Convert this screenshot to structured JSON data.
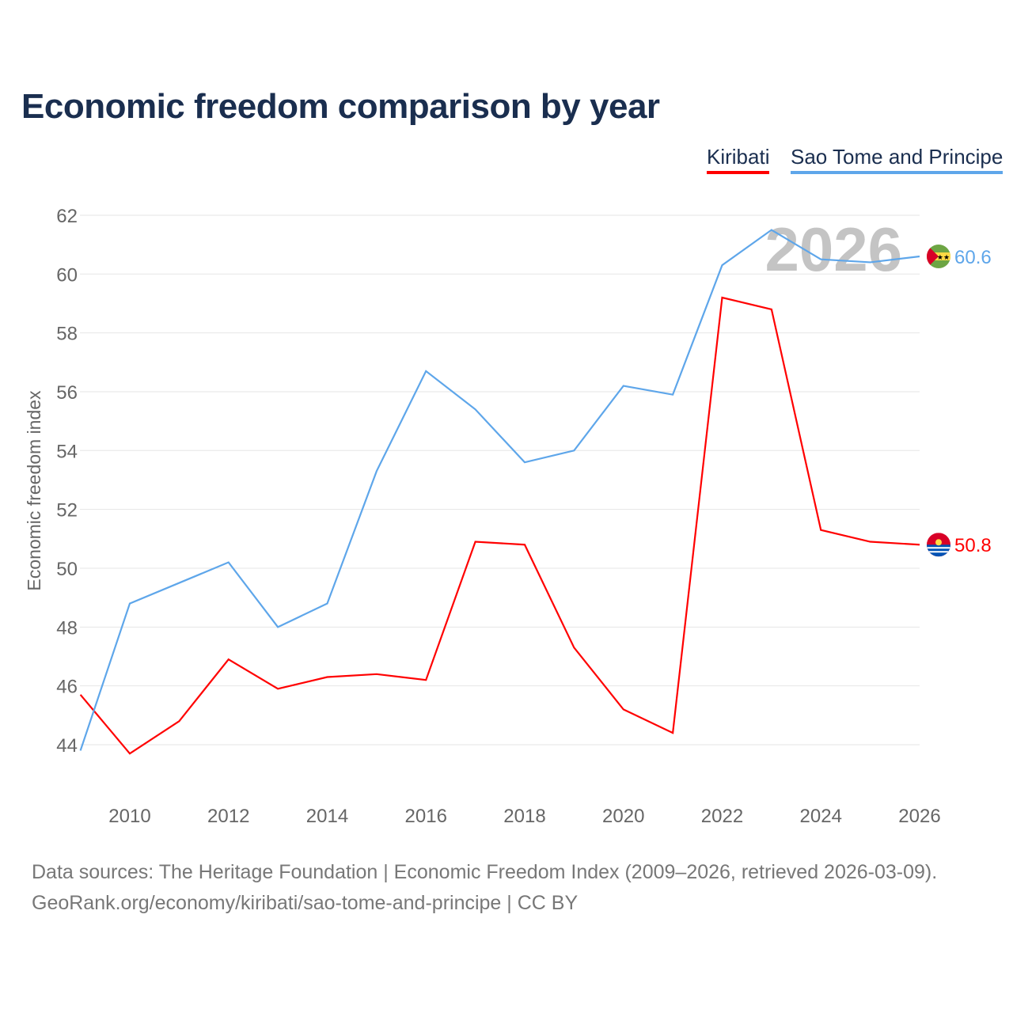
{
  "title": "Economic freedom comparison by year",
  "footer": {
    "line1": "Data sources: The Heritage Foundation | Economic Freedom Index (2009–2026, retrieved 2026-03-09).",
    "line2": "GeoRank.org/economy/kiribati/sao-tome-and-principe | CC BY"
  },
  "chart_data": {
    "type": "line",
    "title": "Economic freedom comparison by year",
    "ylabel": "Economic freedom index",
    "xlabel": "",
    "watermark_year": "2026",
    "xlim": [
      2009,
      2026
    ],
    "ylim": [
      43,
      62.5
    ],
    "xticks": [
      2010,
      2012,
      2014,
      2016,
      2018,
      2020,
      2022,
      2024,
      2026
    ],
    "yticks": [
      44,
      46,
      48,
      50,
      52,
      54,
      56,
      58,
      60,
      62
    ],
    "legend_position": "top-right",
    "x": [
      2009,
      2010,
      2011,
      2012,
      2013,
      2014,
      2015,
      2016,
      2017,
      2018,
      2019,
      2020,
      2021,
      2022,
      2023,
      2024,
      2025,
      2026
    ],
    "series": [
      {
        "name": "Kiribati",
        "color": "#ff0000",
        "end_label": "50.8",
        "flag": "kiribati-flag-icon",
        "values": [
          45.7,
          43.7,
          44.8,
          46.9,
          45.9,
          46.3,
          46.4,
          46.2,
          50.9,
          50.8,
          47.3,
          45.2,
          44.4,
          59.2,
          58.8,
          51.3,
          50.9,
          50.8
        ]
      },
      {
        "name": "Sao Tome and Principe",
        "color": "#5ea6ea",
        "end_label": "60.6",
        "flag": "sao-tome-flag-icon",
        "values": [
          43.8,
          48.8,
          49.5,
          50.2,
          48.0,
          48.8,
          53.3,
          56.7,
          55.4,
          53.6,
          54.0,
          56.2,
          55.9,
          60.3,
          61.5,
          60.5,
          60.4,
          60.6
        ]
      }
    ]
  }
}
